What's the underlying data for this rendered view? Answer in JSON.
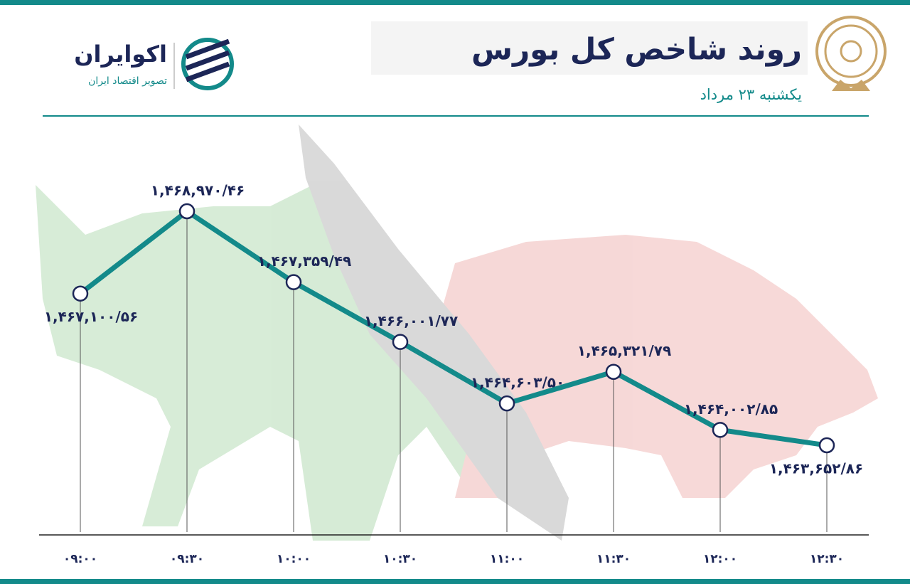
{
  "brand": {
    "name": "اکوایران",
    "tagline": "تصویر اقتصاد ایران"
  },
  "chart_data": {
    "type": "line",
    "title": "روند شاخص کل بورس",
    "subtitle": "یکشنبه ۲۳ مرداد",
    "categories": [
      "۰۹:۰۰",
      "۰۹:۳۰",
      "۱۰:۰۰",
      "۱۰:۳۰",
      "۱۱:۰۰",
      "۱۱:۳۰",
      "۱۲:۰۰",
      "۱۲:۳۰"
    ],
    "series": [
      {
        "color": "#138a8a",
        "values": [
          1467100.56,
          1468970.46,
          1467359.49,
          1466001.77,
          1464603.5,
          1465321.79,
          1464002.85,
          1463652.86
        ],
        "value_labels": [
          "۱,۴۶۷,۱۰۰/۵۶",
          "۱,۴۶۸,۹۷۰/۴۶",
          "۱,۴۶۷,۳۵۹/۴۹",
          "۱,۴۶۶,۰۰۱/۷۷",
          "۱,۴۶۴,۶۰۳/۵۰",
          "۱,۴۶۵,۳۲۱/۷۹",
          "۱,۴۶۴,۰۰۲/۸۵",
          "۱,۴۶۳,۶۵۲/۸۶"
        ]
      }
    ]
  }
}
